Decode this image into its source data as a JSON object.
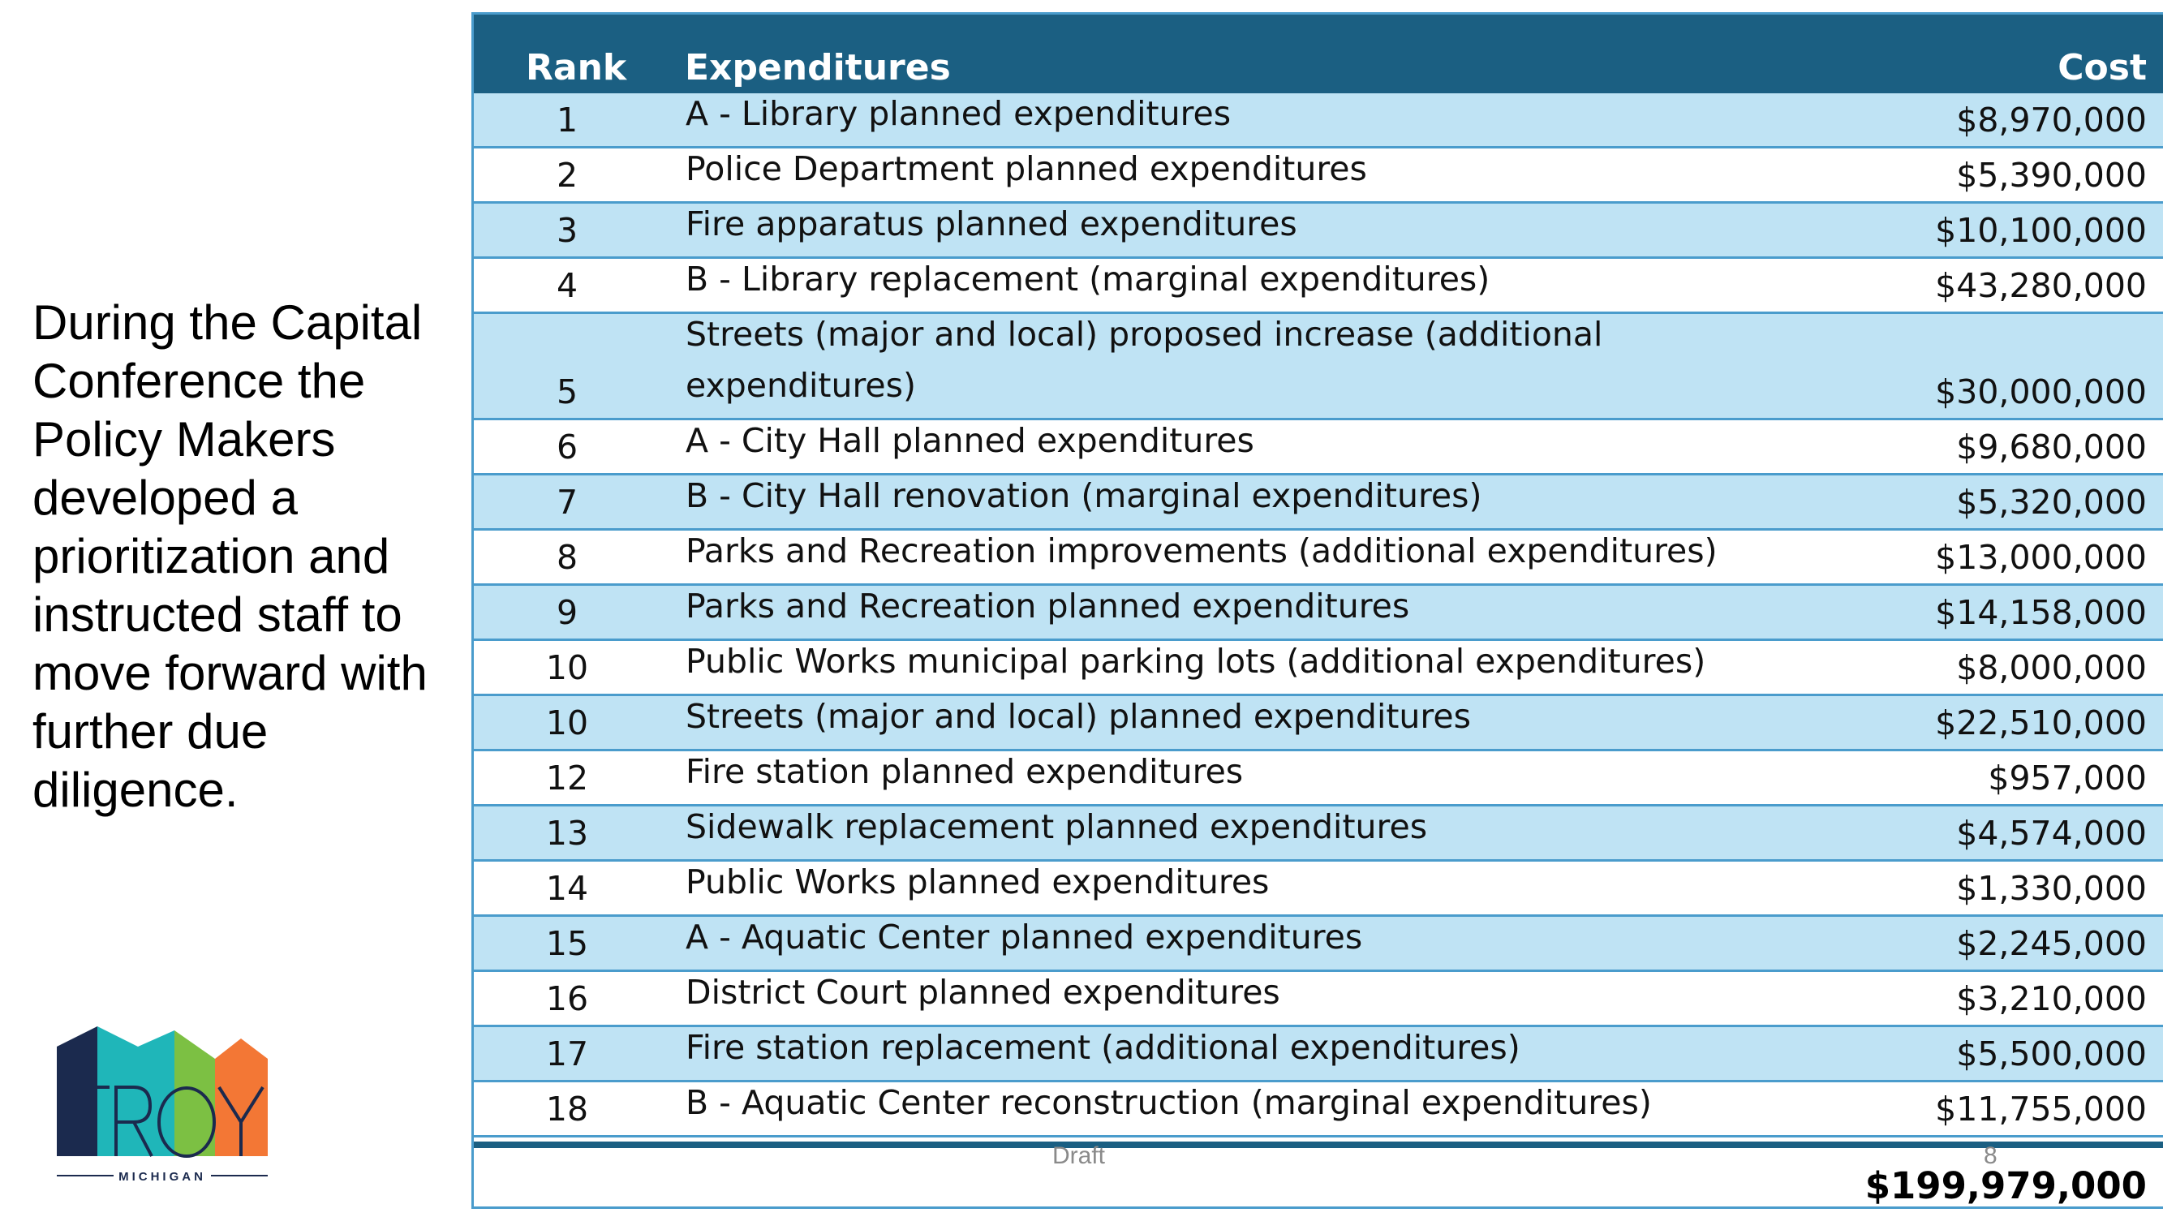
{
  "description": "During the Capital Conference the Policy Makers developed a prioritization and instructed staff to move forward with further due diligence.",
  "logo": {
    "text": "TROY",
    "subtext": "MICHIGAN"
  },
  "table": {
    "headers": {
      "rank": "Rank",
      "expenditures": "Expenditures",
      "cost": "Cost"
    },
    "rows": [
      {
        "rank": "1",
        "expenditure": "A - Library planned expenditures",
        "cost": "$8,970,000"
      },
      {
        "rank": "2",
        "expenditure": "Police Department planned expenditures",
        "cost": "$5,390,000"
      },
      {
        "rank": "3",
        "expenditure": "Fire apparatus planned expenditures",
        "cost": "$10,100,000"
      },
      {
        "rank": "4",
        "expenditure": "B - Library replacement (marginal expenditures)",
        "cost": "$43,280,000"
      },
      {
        "rank": "5",
        "expenditure": "Streets (major and local) proposed increase (additional expenditures)",
        "cost": "$30,000,000"
      },
      {
        "rank": "6",
        "expenditure": "A - City Hall planned expenditures",
        "cost": "$9,680,000"
      },
      {
        "rank": "7",
        "expenditure": "B - City Hall renovation (marginal expenditures)",
        "cost": "$5,320,000"
      },
      {
        "rank": "8",
        "expenditure": "Parks and Recreation improvements (additional expenditures)",
        "cost": "$13,000,000"
      },
      {
        "rank": "9",
        "expenditure": "Parks and Recreation planned expenditures",
        "cost": "$14,158,000"
      },
      {
        "rank": "10",
        "expenditure": "Public Works municipal parking lots (additional expenditures)",
        "cost": "$8,000,000"
      },
      {
        "rank": "10",
        "expenditure": "Streets (major and local) planned expenditures",
        "cost": "$22,510,000"
      },
      {
        "rank": "12",
        "expenditure": "Fire station planned expenditures",
        "cost": "$957,000"
      },
      {
        "rank": "13",
        "expenditure": "Sidewalk replacement planned expenditures",
        "cost": "$4,574,000"
      },
      {
        "rank": "14",
        "expenditure": "Public Works planned expenditures",
        "cost": "$1,330,000"
      },
      {
        "rank": "15",
        "expenditure": "A - Aquatic Center planned expenditures",
        "cost": "$2,245,000"
      },
      {
        "rank": "16",
        "expenditure": "District Court planned expenditures",
        "cost": "$3,210,000"
      },
      {
        "rank": "17",
        "expenditure": "Fire station replacement (additional expenditures)",
        "cost": "$5,500,000"
      },
      {
        "rank": "18",
        "expenditure": "B - Aquatic Center reconstruction (marginal expenditures)",
        "cost": "$11,755,000"
      }
    ],
    "total": "$199,979,000"
  },
  "footer": {
    "draft": "Draft",
    "page_number": "8"
  },
  "colors": {
    "header_bg": "#1b5f82",
    "alt_row_bg": "#bfe3f4",
    "grid_line": "#4a9ccc"
  }
}
